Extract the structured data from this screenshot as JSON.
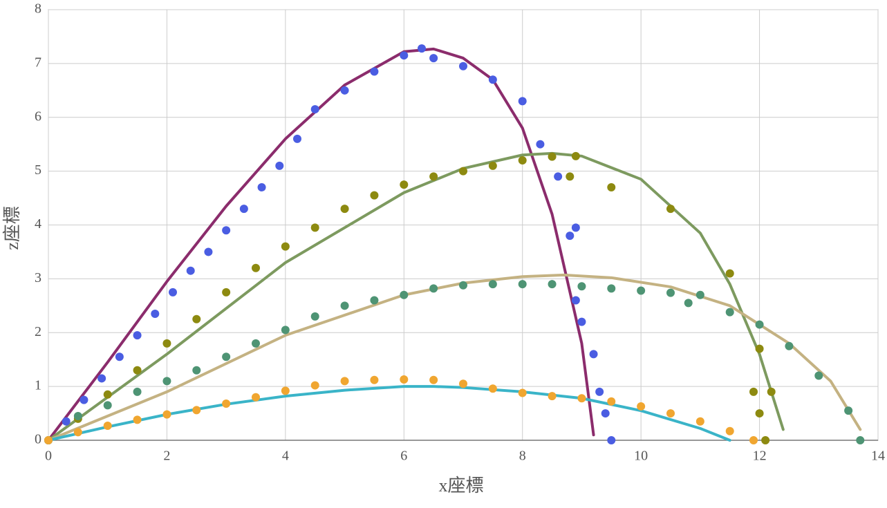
{
  "chart_data": {
    "type": "scatter",
    "xlabel": "x座標",
    "ylabel": "z座標",
    "xlim": [
      0,
      14
    ],
    "ylim": [
      0,
      8
    ],
    "xticks": [
      0,
      2,
      4,
      6,
      8,
      10,
      12,
      14
    ],
    "yticks": [
      0,
      1,
      2,
      3,
      4,
      5,
      6,
      7,
      8
    ],
    "grid": true,
    "series": [
      {
        "mode": "lines",
        "color": "#8b2c6c",
        "x": [
          0,
          1,
          2,
          3,
          4,
          5,
          6,
          6.5,
          7,
          7.5,
          8,
          8.5,
          9,
          9.2
        ],
        "values": [
          0,
          1.45,
          2.95,
          4.35,
          5.6,
          6.6,
          7.22,
          7.27,
          7.1,
          6.7,
          5.8,
          4.2,
          1.8,
          0.1
        ]
      },
      {
        "mode": "lines",
        "color": "#7d9a5f",
        "x": [
          0,
          2,
          4,
          6,
          7,
          8,
          8.5,
          9,
          10,
          11,
          11.5,
          12,
          12.4
        ],
        "values": [
          0,
          1.6,
          3.3,
          4.6,
          5.05,
          5.3,
          5.33,
          5.28,
          4.85,
          3.85,
          2.9,
          1.6,
          0.2
        ]
      },
      {
        "mode": "lines",
        "color": "#c4b282",
        "x": [
          0,
          2,
          4,
          6,
          7,
          8,
          8.7,
          9.5,
          10.5,
          11.5,
          12.5,
          13.2,
          13.7
        ],
        "values": [
          0,
          0.9,
          1.95,
          2.7,
          2.92,
          3.04,
          3.07,
          3.02,
          2.85,
          2.5,
          1.8,
          1.1,
          0.2
        ]
      },
      {
        "mode": "lines",
        "color": "#3ab4c8",
        "x": [
          0,
          1,
          2,
          3,
          4,
          5,
          6,
          6.5,
          7,
          8,
          9,
          10,
          11,
          11.5
        ],
        "values": [
          0,
          0.25,
          0.48,
          0.67,
          0.82,
          0.93,
          1.0,
          1.0,
          0.98,
          0.9,
          0.78,
          0.55,
          0.22,
          0
        ]
      },
      {
        "mode": "markers",
        "color": "#4a5de2",
        "x": [
          0,
          0.3,
          0.6,
          0.9,
          1.2,
          1.5,
          1.8,
          2.1,
          2.4,
          2.7,
          3.0,
          3.3,
          3.6,
          3.9,
          4.2,
          4.5,
          5.0,
          5.5,
          6.0,
          6.3,
          6.5,
          7.0,
          7.5,
          8.0,
          8.3,
          8.6,
          8.9,
          8.8,
          8.9,
          9.0,
          9.2,
          9.3,
          9.4,
          9.5
        ],
        "values": [
          0,
          0.35,
          0.75,
          1.15,
          1.55,
          1.95,
          2.35,
          2.75,
          3.15,
          3.5,
          3.9,
          4.3,
          4.7,
          5.1,
          5.6,
          6.15,
          6.5,
          6.85,
          7.15,
          7.28,
          7.1,
          6.95,
          6.7,
          6.3,
          5.5,
          4.9,
          3.95,
          3.8,
          2.6,
          2.2,
          1.6,
          0.9,
          0.5,
          0
        ]
      },
      {
        "mode": "markers",
        "color": "#8d8a10",
        "x": [
          0,
          0.5,
          1,
          1.5,
          2,
          2.5,
          3,
          3.5,
          4,
          4.5,
          5,
          5.5,
          6,
          6.5,
          7,
          7.5,
          8,
          8.5,
          8.9,
          8.8,
          9.5,
          10.5,
          11.5,
          12.0,
          12.2,
          11.9,
          12.0,
          12.1
        ],
        "values": [
          0,
          0.4,
          0.85,
          1.3,
          1.8,
          2.25,
          2.75,
          3.2,
          3.6,
          3.95,
          4.3,
          4.55,
          4.75,
          4.9,
          5.0,
          5.1,
          5.2,
          5.27,
          5.28,
          4.9,
          4.7,
          4.3,
          3.1,
          1.7,
          0.9,
          0.9,
          0.5,
          0
        ]
      },
      {
        "mode": "markers",
        "color": "#4e9474",
        "x": [
          0,
          0.5,
          1,
          1.5,
          2,
          2.5,
          3,
          3.5,
          4,
          4.5,
          5,
          5.5,
          6,
          6.5,
          7,
          7.5,
          8,
          8.5,
          9,
          9.5,
          10,
          10.5,
          11,
          10.8,
          11.5,
          12,
          12.5,
          13,
          13.5,
          13.7
        ],
        "values": [
          0,
          0.45,
          0.65,
          0.9,
          1.1,
          1.3,
          1.55,
          1.8,
          2.05,
          2.3,
          2.5,
          2.6,
          2.7,
          2.82,
          2.88,
          2.9,
          2.9,
          2.9,
          2.86,
          2.82,
          2.78,
          2.74,
          2.7,
          2.55,
          2.38,
          2.15,
          1.75,
          1.2,
          0.55,
          0
        ]
      },
      {
        "mode": "markers",
        "color": "#f0a630",
        "x": [
          0,
          0.5,
          1,
          1.5,
          2,
          2.5,
          3,
          3.5,
          4,
          4.5,
          5,
          5.5,
          6,
          6.5,
          7,
          7.5,
          8,
          8.5,
          9,
          9.5,
          10,
          10.5,
          11,
          11.5,
          11.9
        ],
        "values": [
          0,
          0.15,
          0.27,
          0.38,
          0.48,
          0.56,
          0.68,
          0.8,
          0.92,
          1.02,
          1.1,
          1.12,
          1.13,
          1.12,
          1.05,
          0.96,
          0.88,
          0.82,
          0.78,
          0.72,
          0.63,
          0.5,
          0.35,
          0.17,
          0
        ]
      }
    ]
  }
}
